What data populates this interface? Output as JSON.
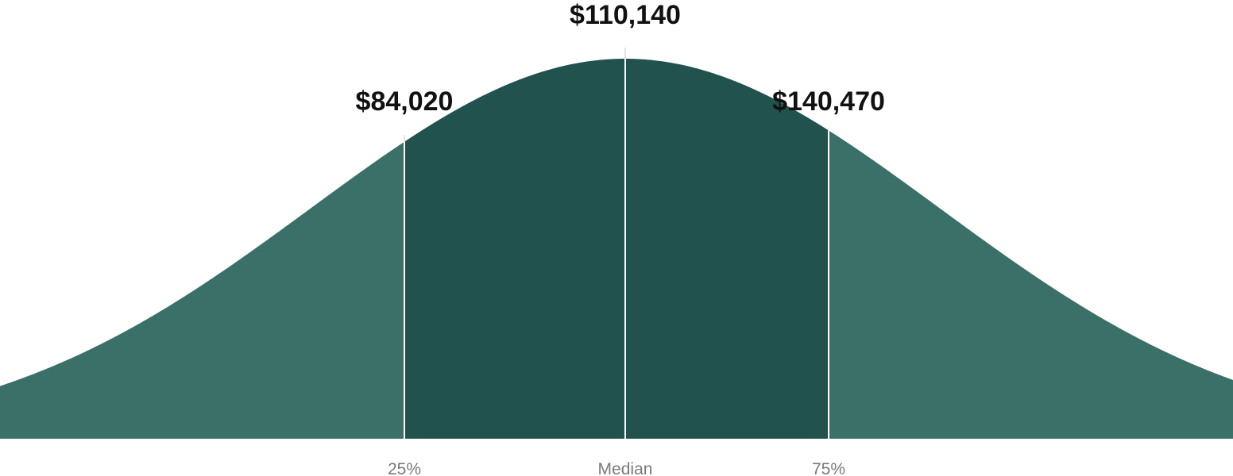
{
  "chart_data": {
    "type": "area",
    "distribution": "normal",
    "title": "",
    "xlabel": "",
    "ylabel": "",
    "grid": false,
    "legend": "none",
    "markers": [
      {
        "key": "p25",
        "percentile_label": "25%",
        "value": 84020,
        "value_label": "$84,020"
      },
      {
        "key": "median",
        "percentile_label": "Median",
        "value": 110140,
        "value_label": "$110,140"
      },
      {
        "key": "p75",
        "percentile_label": "75%",
        "value": 140470,
        "value_label": "$140,470"
      }
    ]
  },
  "colors": {
    "outer_tails": "#3a7068",
    "middle_band": "#21524d",
    "divider": "#ffffff",
    "guide": "#d9d9d9",
    "value_text": "#111111",
    "tick_text": "#7a7a7a"
  }
}
